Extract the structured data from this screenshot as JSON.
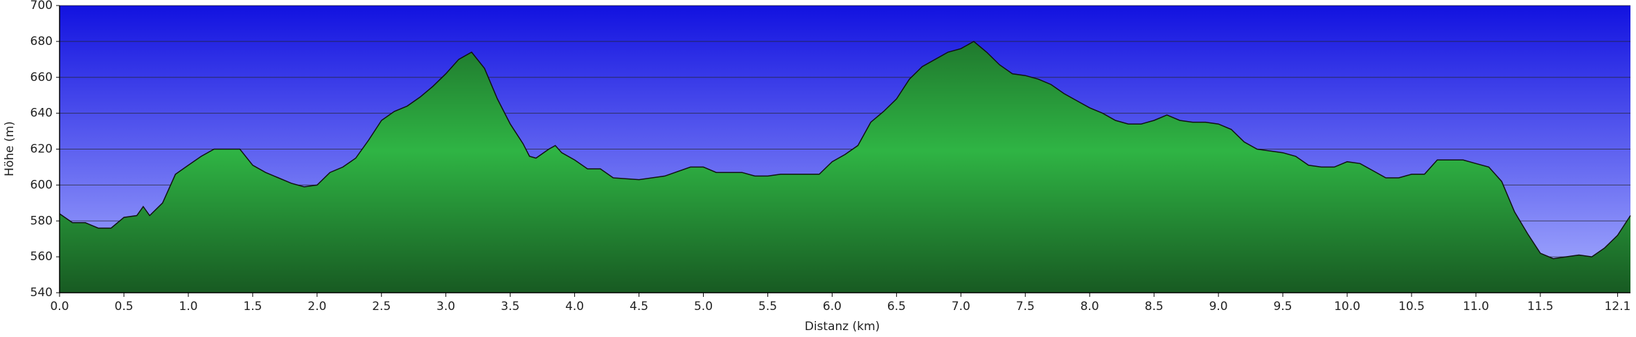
{
  "chart_data": {
    "type": "area",
    "x_label": "Distanz   (km)",
    "y_label": "Höhe (m)",
    "x": [
      0.0,
      0.1,
      0.2,
      0.3,
      0.4,
      0.5,
      0.6,
      0.65,
      0.7,
      0.8,
      0.9,
      1.0,
      1.1,
      1.2,
      1.3,
      1.4,
      1.5,
      1.6,
      1.7,
      1.8,
      1.9,
      2.0,
      2.1,
      2.2,
      2.3,
      2.4,
      2.5,
      2.6,
      2.7,
      2.8,
      2.9,
      3.0,
      3.1,
      3.2,
      3.3,
      3.4,
      3.5,
      3.6,
      3.65,
      3.7,
      3.8,
      3.85,
      3.9,
      4.0,
      4.1,
      4.2,
      4.3,
      4.5,
      4.7,
      4.9,
      5.0,
      5.1,
      5.3,
      5.4,
      5.5,
      5.6,
      5.7,
      5.8,
      5.9,
      6.0,
      6.1,
      6.2,
      6.3,
      6.4,
      6.5,
      6.6,
      6.7,
      6.8,
      6.9,
      7.0,
      7.1,
      7.2,
      7.3,
      7.4,
      7.5,
      7.6,
      7.7,
      7.8,
      7.9,
      8.0,
      8.1,
      8.2,
      8.3,
      8.4,
      8.5,
      8.6,
      8.7,
      8.8,
      8.9,
      9.0,
      9.1,
      9.2,
      9.3,
      9.4,
      9.5,
      9.6,
      9.7,
      9.8,
      9.9,
      10.0,
      10.1,
      10.2,
      10.3,
      10.4,
      10.5,
      10.6,
      10.7,
      10.8,
      10.9,
      11.0,
      11.1,
      11.2,
      11.3,
      11.4,
      11.5,
      11.6,
      11.7,
      11.8,
      11.9,
      12.0,
      12.1,
      12.2
    ],
    "values": [
      584,
      579,
      579,
      576,
      576,
      582,
      583,
      588,
      583,
      590,
      606,
      611,
      616,
      620,
      620,
      620,
      611,
      607,
      604,
      601,
      599,
      600,
      607,
      610,
      615,
      625,
      636,
      641,
      644,
      649,
      655,
      662,
      670,
      674,
      665,
      648,
      634,
      623,
      616,
      615,
      620,
      622,
      618,
      614,
      609,
      609,
      604,
      603,
      605,
      610,
      610,
      607,
      607,
      605,
      605,
      606,
      606,
      606,
      606,
      613,
      617,
      622,
      635,
      641,
      648,
      659,
      666,
      670,
      674,
      676,
      680,
      674,
      667,
      662,
      661,
      659,
      656,
      651,
      647,
      643,
      640,
      636,
      634,
      634,
      636,
      639,
      636,
      635,
      635,
      634,
      631,
      624,
      620,
      619,
      618,
      616,
      611,
      610,
      610,
      613,
      612,
      608,
      604,
      604,
      606,
      606,
      614,
      614,
      614,
      612,
      610,
      602,
      585,
      573,
      562,
      559,
      560,
      561,
      560,
      565,
      572,
      583
    ],
    "color": "#2fb444",
    "line_color": "#111111",
    "xlim": [
      0,
      12.2
    ],
    "ylim": [
      540,
      700
    ],
    "xticks": [
      {
        "value": 0,
        "label": "0.0"
      },
      0.5,
      {
        "value": 1,
        "label": "1.0"
      },
      1.5,
      {
        "value": 2,
        "label": "2.0"
      },
      2.5,
      {
        "value": 3,
        "label": "3.0"
      },
      3.5,
      {
        "value": 4,
        "label": "4.0"
      },
      4.5,
      {
        "value": 5,
        "label": "5.0"
      },
      5.5,
      {
        "value": 6,
        "label": "6.0"
      },
      6.5,
      {
        "value": 7,
        "label": "7.0"
      },
      7.5,
      {
        "value": 8,
        "label": "8.0"
      },
      8.5,
      {
        "value": 9,
        "label": "9.0"
      },
      9.5,
      {
        "value": 10,
        "label": "10.0"
      },
      10.5,
      {
        "value": 11,
        "label": "11.0"
      },
      11.5,
      12.1
    ],
    "yticks": [
      540,
      560,
      580,
      600,
      620,
      640,
      660,
      680,
      700
    ],
    "grid": true
  }
}
